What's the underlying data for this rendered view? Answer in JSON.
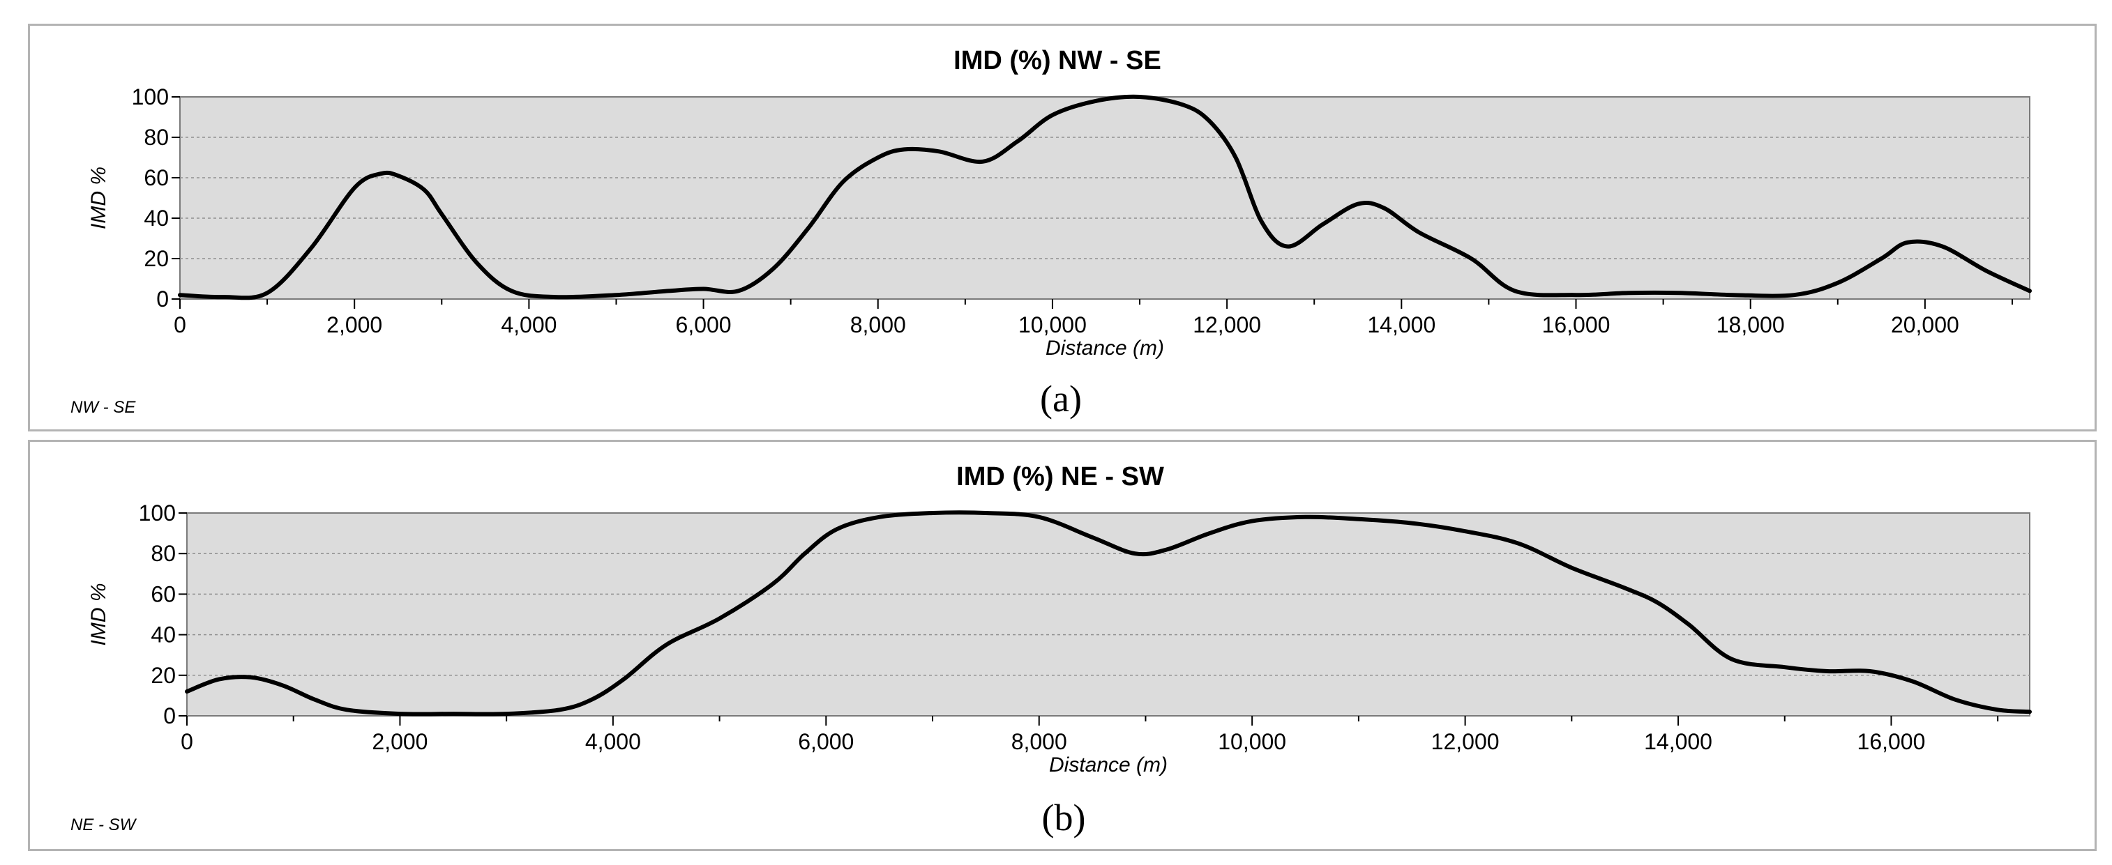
{
  "chart_data": [
    {
      "type": "line",
      "title": "IMD (%) NW -  SE",
      "xlabel": "Distance (m)",
      "ylabel": "IMD %",
      "corner_label": "NW - SE",
      "caption": "(a)",
      "xlim": [
        0,
        21200
      ],
      "ylim": [
        0,
        100
      ],
      "xticks": [
        0,
        2000,
        4000,
        6000,
        8000,
        10000,
        12000,
        14000,
        16000,
        18000,
        20000
      ],
      "xtick_labels": [
        "0",
        "2,000",
        "4,000",
        "6,000",
        "8,000",
        "10,000",
        "12,000",
        "14,000",
        "16,000",
        "18,000",
        "20,000"
      ],
      "yticks": [
        0,
        20,
        40,
        60,
        80,
        100
      ],
      "ytick_labels": [
        "0",
        "20",
        "40",
        "60",
        "80",
        "100"
      ],
      "grid": true,
      "series": [
        {
          "name": "NW - SE",
          "x": [
            0,
            500,
            1000,
            1500,
            2000,
            2300,
            2500,
            2800,
            3000,
            3400,
            3800,
            4300,
            5000,
            5600,
            6000,
            6400,
            6800,
            7200,
            7600,
            8000,
            8300,
            8700,
            9200,
            9600,
            10000,
            10500,
            11000,
            11500,
            11800,
            12100,
            12400,
            12700,
            13100,
            13500,
            13800,
            14200,
            14800,
            15300,
            16000,
            16600,
            17200,
            17800,
            18500,
            19000,
            19500,
            19800,
            20200,
            20700,
            21200
          ],
          "values": [
            2,
            1,
            3,
            25,
            55,
            62,
            61,
            54,
            42,
            18,
            4,
            1,
            2,
            4,
            5,
            4,
            15,
            35,
            58,
            70,
            74,
            73,
            68,
            78,
            91,
            98,
            100,
            96,
            88,
            70,
            38,
            26,
            37,
            47,
            45,
            33,
            20,
            4,
            2,
            3,
            3,
            2,
            2,
            8,
            20,
            28,
            26,
            14,
            4
          ]
        }
      ]
    },
    {
      "type": "line",
      "title": "IMD (%) NE - SW",
      "xlabel": "Distance (m)",
      "ylabel": "IMD %",
      "corner_label": "NE - SW",
      "caption": "(b)",
      "xlim": [
        0,
        17300
      ],
      "ylim": [
        0,
        100
      ],
      "xticks": [
        0,
        2000,
        4000,
        6000,
        8000,
        10000,
        12000,
        14000,
        16000
      ],
      "xtick_labels": [
        "0",
        "2,000",
        "4,000",
        "6,000",
        "8,000",
        "10,000",
        "12,000",
        "14,000",
        "16,000"
      ],
      "yticks": [
        0,
        20,
        40,
        60,
        80,
        100
      ],
      "ytick_labels": [
        "0",
        "20",
        "40",
        "60",
        "80",
        "100"
      ],
      "grid": true,
      "series": [
        {
          "name": "NE - SW",
          "x": [
            0,
            300,
            600,
            900,
            1200,
            1500,
            2000,
            2500,
            3000,
            3500,
            3800,
            4100,
            4500,
            5000,
            5500,
            5800,
            6100,
            6500,
            7000,
            7500,
            8000,
            8500,
            8900,
            9200,
            9600,
            10000,
            10500,
            11000,
            11500,
            12000,
            12500,
            13000,
            13500,
            13800,
            14100,
            14500,
            15000,
            15400,
            15800,
            16200,
            16600,
            17000,
            17300
          ],
          "values": [
            12,
            18,
            19,
            15,
            8,
            3,
            1,
            1,
            1,
            3,
            8,
            18,
            35,
            48,
            65,
            80,
            92,
            98,
            100,
            100,
            98,
            88,
            80,
            82,
            90,
            96,
            98,
            97,
            95,
            91,
            85,
            73,
            63,
            56,
            45,
            28,
            24,
            22,
            22,
            17,
            8,
            3,
            2
          ]
        }
      ]
    }
  ]
}
